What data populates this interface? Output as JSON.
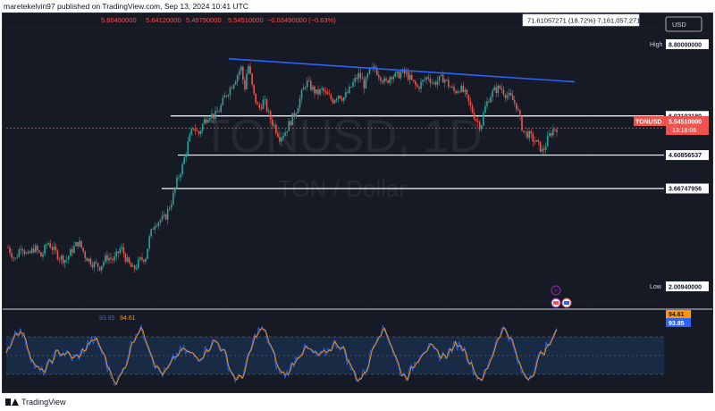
{
  "header": {
    "publish_line": "maretekelvin97 published on TradingView.com, Sep 13, 2024 10:41 UTC"
  },
  "ohlc": {
    "open": "5.60450000",
    "high": "5.64120000",
    "low": "5.49790000",
    "close": "5.54510000",
    "change": "−0.03490000 (−0.63%)"
  },
  "volume_readout": "71.61057271 (18.72%) 7,161,057,271",
  "currency_button": "USD",
  "watermark": {
    "symbol": "TONUSD, 1D",
    "name": "TON / Dollar"
  },
  "price_tags": {
    "high_label": "High",
    "high_value": "8.80000000",
    "low_label": "Low",
    "low_value": "2.00940000",
    "symbol_label": "TONUSD",
    "last_value": "5.54510000",
    "countdown": "13:18:06"
  },
  "oscillator": {
    "legend_k": "93.85",
    "legend_d": "94.61",
    "tag_d": "94.61",
    "tag_k": "93.85"
  },
  "footer": {
    "brand": "TradingView"
  },
  "colors": {
    "background": "#161a25",
    "up": "#26a69a",
    "down": "#ef5350",
    "trendline": "#2962ff",
    "k_line": "#2962ff",
    "d_line": "#ff9800",
    "band_fill": "#1e3a5f"
  },
  "chart_data": {
    "type": "candlestick",
    "symbol": "TONUSD",
    "interval": "1D",
    "y_scale": "log",
    "ylim": [
      1.7,
      11.0
    ],
    "horizontal_levels": [
      6.0210218,
      4.60856537,
      3.66747956
    ],
    "last_price": 5.5451,
    "session_high": 8.8,
    "session_low": 2.0094,
    "trendline": {
      "from": 8.9,
      "to": 7.6
    },
    "candle_count": 300,
    "price_path": [
      [
        0,
        2.45
      ],
      [
        8,
        2.25
      ],
      [
        15,
        2.5
      ],
      [
        22,
        2.3
      ],
      [
        30,
        2.45
      ],
      [
        38,
        2.3
      ],
      [
        45,
        2.55
      ],
      [
        52,
        2.4
      ],
      [
        58,
        2.3
      ],
      [
        66,
        2.25
      ],
      [
        72,
        2.4
      ],
      [
        80,
        2.55
      ],
      [
        88,
        2.3
      ],
      [
        96,
        2.2
      ],
      [
        104,
        2.15
      ],
      [
        112,
        2.3
      ],
      [
        120,
        2.25
      ],
      [
        128,
        2.45
      ],
      [
        136,
        2.2
      ],
      [
        142,
        2.1
      ],
      [
        150,
        2.25
      ],
      [
        156,
        2.3
      ],
      [
        160,
        2.6
      ],
      [
        166,
        2.9
      ],
      [
        172,
        2.95
      ],
      [
        178,
        3.0
      ],
      [
        186,
        3.4
      ],
      [
        192,
        3.9
      ],
      [
        198,
        4.3
      ],
      [
        204,
        5.0
      ],
      [
        210,
        5.6
      ],
      [
        216,
        5.3
      ],
      [
        222,
        5.8
      ],
      [
        228,
        6.1
      ],
      [
        234,
        6.0
      ],
      [
        240,
        6.3
      ],
      [
        246,
        6.9
      ],
      [
        252,
        7.3
      ],
      [
        258,
        7.8
      ],
      [
        264,
        8.4
      ],
      [
        268,
        7.2
      ],
      [
        272,
        8.6
      ],
      [
        278,
        7.0
      ],
      [
        284,
        6.3
      ],
      [
        290,
        6.7
      ],
      [
        296,
        6.0
      ],
      [
        302,
        5.6
      ],
      [
        308,
        5.2
      ],
      [
        314,
        5.4
      ],
      [
        320,
        5.8
      ],
      [
        326,
        6.2
      ],
      [
        332,
        6.9
      ],
      [
        338,
        7.6
      ],
      [
        344,
        7.3
      ],
      [
        350,
        7.0
      ],
      [
        356,
        7.2
      ],
      [
        362,
        6.9
      ],
      [
        368,
        6.7
      ],
      [
        374,
        7.0
      ],
      [
        380,
        6.8
      ],
      [
        386,
        7.1
      ],
      [
        392,
        7.6
      ],
      [
        398,
        8.0
      ],
      [
        404,
        7.4
      ],
      [
        410,
        8.2
      ],
      [
        416,
        8.3
      ],
      [
        422,
        7.9
      ],
      [
        428,
        7.5
      ],
      [
        434,
        8.0
      ],
      [
        440,
        7.9
      ],
      [
        446,
        8.1
      ],
      [
        452,
        8.0
      ],
      [
        458,
        7.6
      ],
      [
        464,
        7.3
      ],
      [
        470,
        7.6
      ],
      [
        476,
        7.9
      ],
      [
        482,
        7.5
      ],
      [
        488,
        7.7
      ],
      [
        494,
        7.8
      ],
      [
        500,
        7.4
      ],
      [
        506,
        7.1
      ],
      [
        512,
        7.3
      ],
      [
        518,
        7.0
      ],
      [
        524,
        6.4
      ],
      [
        530,
        5.9
      ],
      [
        536,
        5.6
      ],
      [
        540,
        6.3
      ],
      [
        546,
        6.9
      ],
      [
        552,
        7.2
      ],
      [
        558,
        7.3
      ],
      [
        564,
        7.0
      ],
      [
        570,
        6.8
      ],
      [
        576,
        6.5
      ],
      [
        580,
        5.9
      ],
      [
        584,
        5.4
      ],
      [
        590,
        5.3
      ],
      [
        596,
        5.1
      ],
      [
        602,
        4.9
      ],
      [
        606,
        4.7
      ],
      [
        610,
        5.0
      ],
      [
        614,
        5.3
      ],
      [
        618,
        5.5
      ],
      [
        622,
        5.55
      ]
    ],
    "oscillator_ylim": [
      0,
      100
    ],
    "oscillator_band": [
      20,
      80
    ],
    "oscillator_k_last": 93.85,
    "oscillator_d_last": 94.61
  }
}
